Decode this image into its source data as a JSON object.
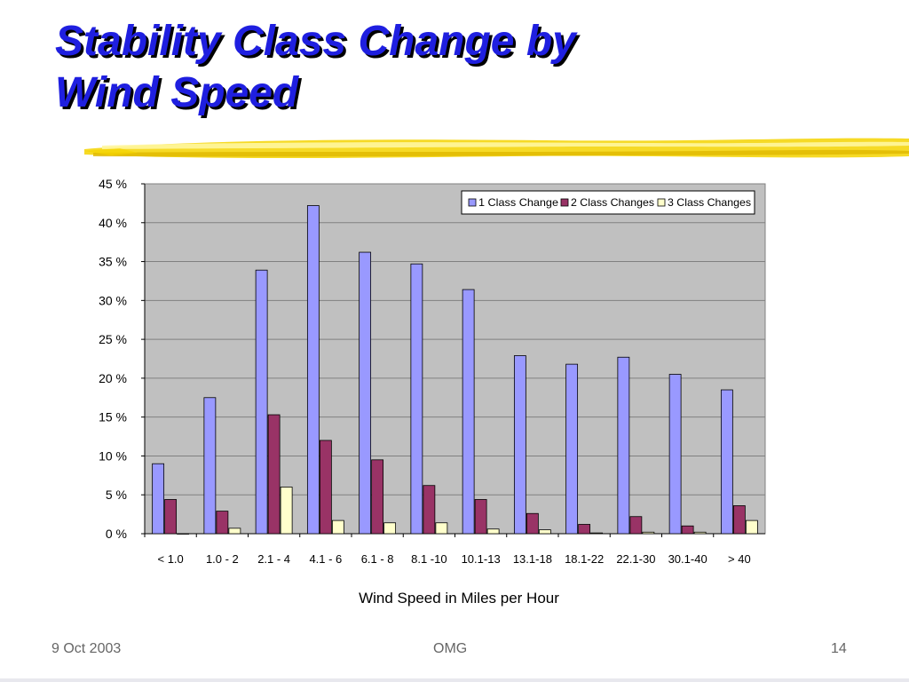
{
  "slide": {
    "title_line1": "Stability Class Change by",
    "title_line2": "Wind Speed",
    "footer_left": "9 Oct  2003",
    "footer_center": "OMG",
    "footer_right": "14"
  },
  "colors": {
    "title": "#1f1fe0",
    "plot_bg": "#c0c0c0",
    "series1": "#9999ff",
    "series2": "#993366",
    "series3": "#ffffcc",
    "brush": "#f5d400"
  },
  "chart_data": {
    "type": "bar",
    "title": "",
    "xlabel": "Wind Speed in Miles per Hour",
    "ylabel": "",
    "ylim": [
      0,
      45
    ],
    "yticks": [
      0,
      5,
      10,
      15,
      20,
      25,
      30,
      35,
      40,
      45
    ],
    "ytick_labels": [
      "0 %",
      "5 %",
      "10 %",
      "15 %",
      "20 %",
      "25 %",
      "30 %",
      "35 %",
      "40 %",
      "45 %"
    ],
    "categories": [
      "< 1.0",
      "1.0 - 2",
      "2.1 - 4",
      "4.1 - 6",
      "6.1 - 8",
      "8.1 -10",
      "10.1-13",
      "13.1-18",
      "18.1-22",
      "22.1-30",
      "30.1-40",
      ">  40"
    ],
    "series": [
      {
        "name": "1 Class Change",
        "values": [
          9.0,
          17.5,
          33.9,
          42.2,
          36.2,
          34.7,
          31.4,
          22.9,
          21.8,
          22.7,
          20.5,
          18.5
        ]
      },
      {
        "name": "2 Class Changes",
        "values": [
          4.4,
          2.9,
          15.3,
          12.0,
          9.5,
          6.2,
          4.4,
          2.6,
          1.2,
          2.2,
          1.0,
          3.6
        ]
      },
      {
        "name": "3 Class Changes",
        "values": [
          0.0,
          0.7,
          6.0,
          1.7,
          1.4,
          1.4,
          0.6,
          0.5,
          0.1,
          0.2,
          0.2,
          1.7
        ]
      }
    ],
    "grid": true,
    "legend": "top-right"
  }
}
